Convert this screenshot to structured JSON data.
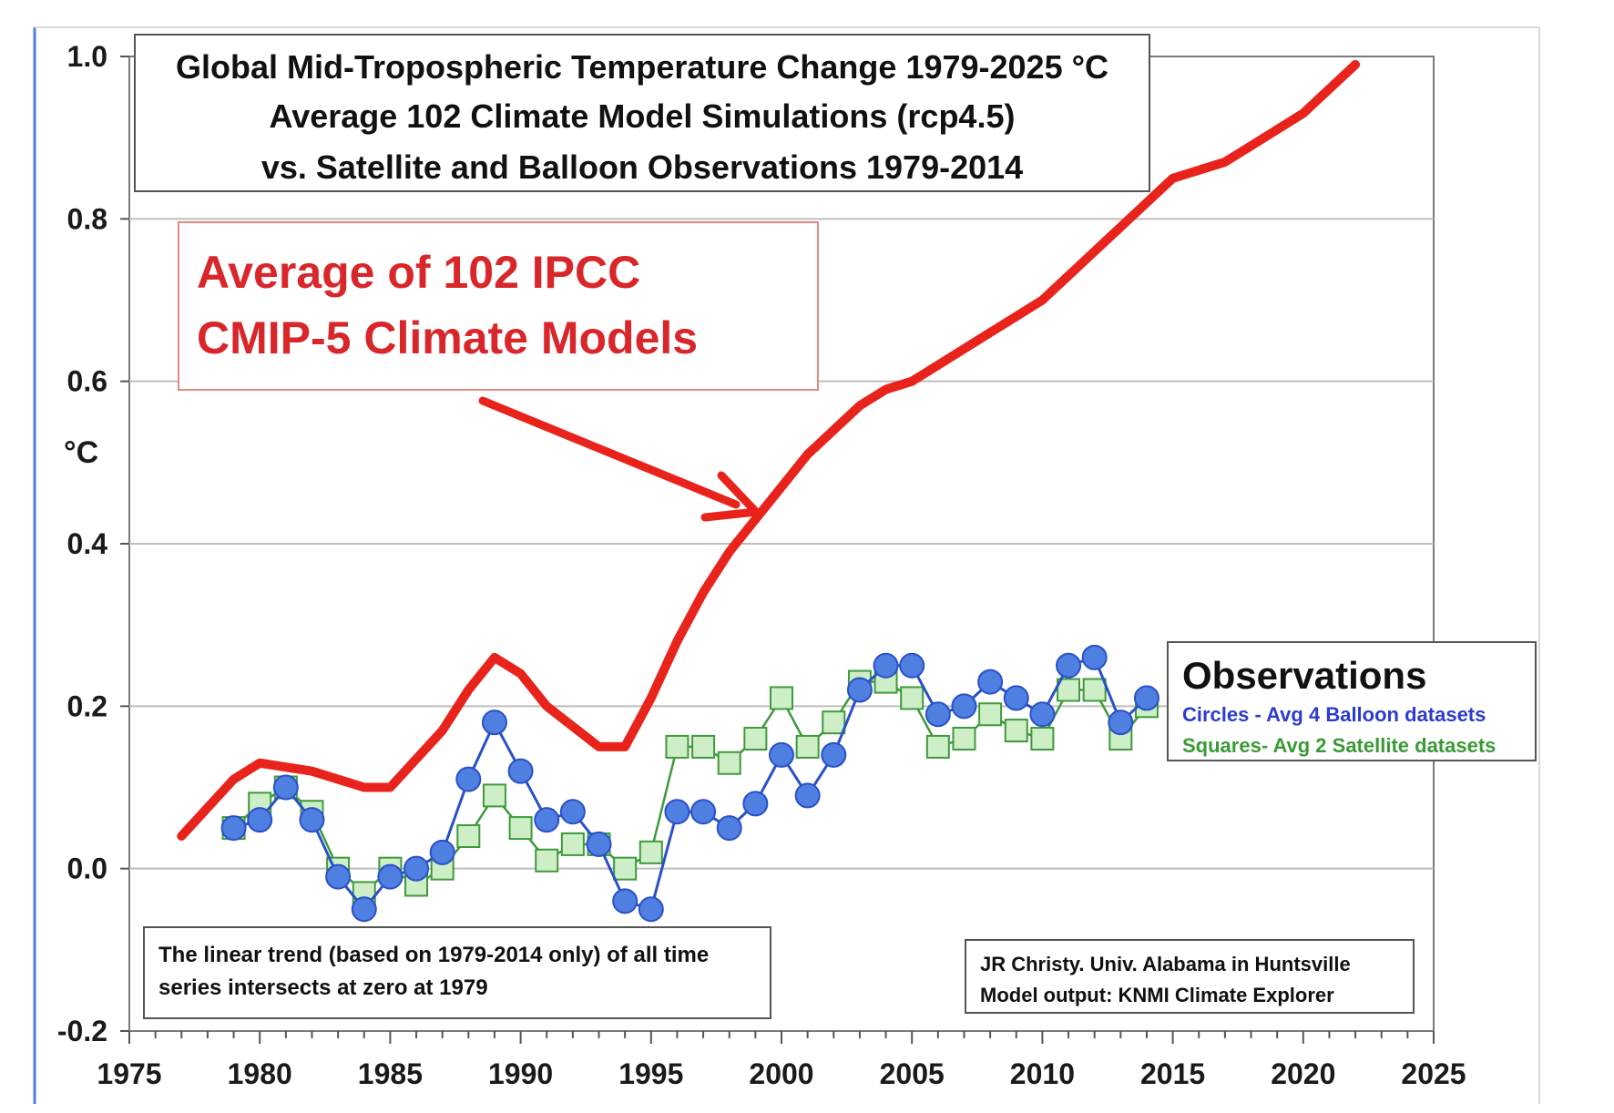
{
  "colors": {
    "model": "#e8231c",
    "balloon_fill": "#4f7fe0",
    "balloon_edge": "#2a50c8",
    "satellite_fill": "#cdeec6",
    "satellite_edge": "#3f9a3c",
    "grid": "#bdbdbd",
    "frame_left": "#4d7fd6",
    "models_label": "#d8262a",
    "legend_balloon_text": "#2b3ccf",
    "legend_satellite_text": "#3a9a35"
  },
  "chart_data": {
    "type": "line",
    "title": [
      "Global Mid-Tropospheric Temperature Change 1979-2025 °C",
      "Average 102 Climate Model Simulations (rcp4.5)",
      "vs. Satellite and Balloon Observations 1979-2014"
    ],
    "ylabel": "°C",
    "xlabel": "",
    "xlim": [
      1975,
      2025
    ],
    "ylim": [
      -0.2,
      1.0
    ],
    "x_ticks": [
      "1975",
      "1980",
      "1985",
      "1990",
      "1995",
      "2000",
      "2005",
      "2010",
      "2015",
      "2020",
      "2025"
    ],
    "y_ticks": [
      "1.0",
      "0.8",
      "0.6",
      "0.4",
      "0.2",
      "0.0",
      "-0.2"
    ],
    "grid": true,
    "legend_position": "right",
    "series": [
      {
        "name": "Average of 102 IPCC CMIP-5 Climate Models",
        "marker": "none",
        "x": [
          1977,
          1979,
          1980,
          1982,
          1984,
          1985,
          1987,
          1988,
          1989,
          1990,
          1991,
          1993,
          1994,
          1995,
          1996,
          1997,
          1998,
          1999,
          2000,
          2001,
          2002,
          2003,
          2004,
          2005,
          2006,
          2007,
          2008,
          2009,
          2010,
          2011,
          2012,
          2013,
          2014,
          2015,
          2016,
          2017,
          2018,
          2019,
          2020,
          2021,
          2022
        ],
        "y": [
          0.04,
          0.11,
          0.13,
          0.12,
          0.1,
          0.1,
          0.17,
          0.22,
          0.26,
          0.24,
          0.2,
          0.15,
          0.15,
          0.21,
          0.28,
          0.34,
          0.39,
          0.43,
          0.47,
          0.51,
          0.54,
          0.57,
          0.59,
          0.6,
          0.62,
          0.64,
          0.66,
          0.68,
          0.7,
          0.73,
          0.76,
          0.79,
          0.82,
          0.85,
          0.86,
          0.87,
          0.89,
          0.91,
          0.93,
          0.96,
          0.99
        ]
      },
      {
        "name": "Circles - Avg 4 Balloon datasets",
        "marker": "circle",
        "x": [
          1979,
          1980,
          1981,
          1982,
          1983,
          1984,
          1985,
          1986,
          1987,
          1988,
          1989,
          1990,
          1991,
          1992,
          1993,
          1994,
          1995,
          1996,
          1997,
          1998,
          1999,
          2000,
          2001,
          2002,
          2003,
          2004,
          2005,
          2006,
          2007,
          2008,
          2009,
          2010,
          2011,
          2012,
          2013,
          2014
        ],
        "y": [
          0.05,
          0.06,
          0.1,
          0.06,
          -0.01,
          -0.05,
          -0.01,
          0.0,
          0.02,
          0.11,
          0.18,
          0.12,
          0.06,
          0.07,
          0.03,
          -0.04,
          -0.05,
          0.07,
          0.07,
          0.05,
          0.08,
          0.14,
          0.09,
          0.14,
          0.22,
          0.25,
          0.25,
          0.19,
          0.2,
          0.23,
          0.21,
          0.19,
          0.25,
          0.26,
          0.18,
          0.21
        ]
      },
      {
        "name": "Squares- Avg 2 Satellite datasets",
        "marker": "square",
        "x": [
          1979,
          1980,
          1981,
          1982,
          1983,
          1984,
          1985,
          1986,
          1987,
          1988,
          1989,
          1990,
          1991,
          1992,
          1993,
          1994,
          1995,
          1996,
          1997,
          1998,
          1999,
          2000,
          2001,
          2002,
          2003,
          2004,
          2005,
          2006,
          2007,
          2008,
          2009,
          2010,
          2011,
          2012,
          2013,
          2014
        ],
        "y": [
          0.05,
          0.08,
          0.1,
          0.07,
          0.0,
          -0.03,
          0.0,
          -0.02,
          0.0,
          0.04,
          0.09,
          0.05,
          0.01,
          0.03,
          0.03,
          0.0,
          0.02,
          0.15,
          0.15,
          0.13,
          0.16,
          0.21,
          0.15,
          0.18,
          0.23,
          0.23,
          0.21,
          0.15,
          0.16,
          0.19,
          0.17,
          0.16,
          0.22,
          0.22,
          0.16,
          0.2
        ]
      }
    ]
  },
  "annotations": {
    "models_label": [
      "Average of 102 IPCC",
      "CMIP-5 Climate Models"
    ],
    "legend_title": "Observations",
    "legend_balloon": "Circles - Avg 4 Balloon datasets",
    "legend_satellite": "Squares- Avg 2 Satellite datasets",
    "trend_note": [
      "The linear trend (based on 1979-2014 only) of all time",
      "series intersects at zero at 1979"
    ],
    "credit": [
      "JR Christy. Univ. Alabama in Huntsville",
      "Model output: KNMI Climate Explorer"
    ]
  }
}
